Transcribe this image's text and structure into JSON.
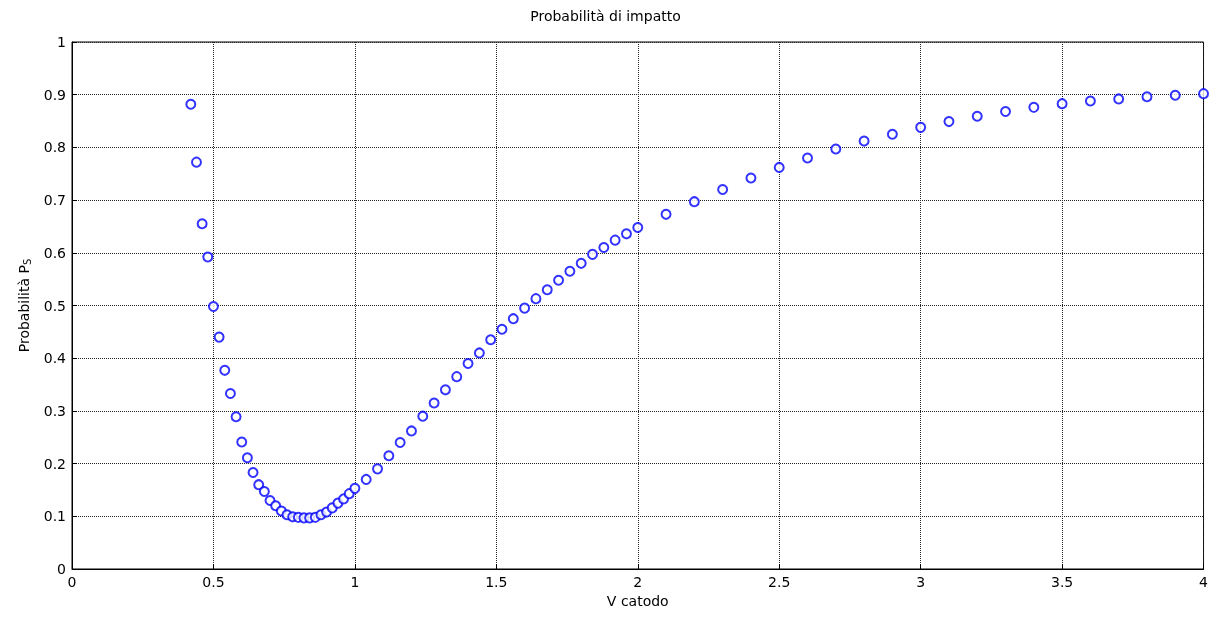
{
  "chart_data": {
    "type": "scatter",
    "title": "Probabilità di impatto",
    "xlabel": "V catodo",
    "ylabel": "Probabilità P$_{S}$",
    "marker": "circle",
    "grid": true,
    "xlim": [
      0,
      4
    ],
    "xticks": [
      0,
      0.5,
      1,
      1.5,
      2,
      2.5,
      3,
      3.5,
      4
    ],
    "ylim": [
      0,
      1
    ],
    "yticks": [
      0,
      0.1,
      0.2,
      0.3,
      0.4,
      0.5,
      0.6,
      0.7,
      0.8,
      0.9,
      1
    ],
    "series": [
      {
        "color": "#0000ff",
        "x": [
          0.42,
          0.44,
          0.46,
          0.48,
          0.5,
          0.52,
          0.54,
          0.56,
          0.58,
          0.6,
          0.62,
          0.64,
          0.66,
          0.68,
          0.7,
          0.72,
          0.74,
          0.76,
          0.78,
          0.8,
          0.82,
          0.84,
          0.86,
          0.88,
          0.9,
          0.92,
          0.94,
          0.96,
          0.98,
          1.0,
          1.04,
          1.08,
          1.12,
          1.16,
          1.2,
          1.24,
          1.28,
          1.32,
          1.36,
          1.4,
          1.44,
          1.48,
          1.52,
          1.56,
          1.6,
          1.64,
          1.68,
          1.72,
          1.76,
          1.8,
          1.84,
          1.88,
          1.92,
          1.96,
          2.0,
          2.1,
          2.2,
          2.3,
          2.4,
          2.5,
          2.6,
          2.7,
          2.8,
          2.9,
          3.0,
          3.1,
          3.2,
          3.3,
          3.4,
          3.5,
          3.6,
          3.7,
          3.8,
          3.9,
          4.0
        ],
        "values": [
          0.882,
          0.772,
          0.655,
          0.592,
          0.498,
          0.44,
          0.377,
          0.333,
          0.289,
          0.241,
          0.211,
          0.183,
          0.16,
          0.147,
          0.13,
          0.12,
          0.11,
          0.103,
          0.099,
          0.098,
          0.097,
          0.097,
          0.098,
          0.103,
          0.108,
          0.116,
          0.125,
          0.133,
          0.143,
          0.153,
          0.17,
          0.19,
          0.215,
          0.24,
          0.262,
          0.29,
          0.315,
          0.34,
          0.365,
          0.39,
          0.41,
          0.435,
          0.455,
          0.475,
          0.495,
          0.513,
          0.53,
          0.548,
          0.565,
          0.58,
          0.597,
          0.61,
          0.624,
          0.636,
          0.648,
          0.673,
          0.697,
          0.72,
          0.742,
          0.762,
          0.78,
          0.797,
          0.812,
          0.825,
          0.838,
          0.849,
          0.859,
          0.868,
          0.876,
          0.883,
          0.888,
          0.892,
          0.896,
          0.899,
          0.902
        ]
      }
    ]
  }
}
